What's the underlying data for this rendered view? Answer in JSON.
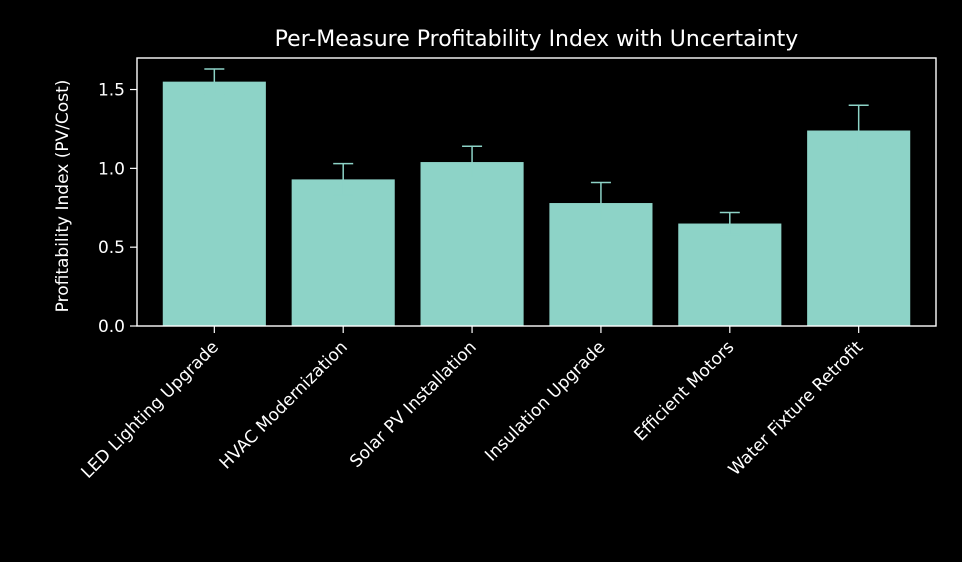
{
  "chart_data": {
    "type": "bar",
    "title": "Per-Measure Profitability Index with Uncertainty",
    "xlabel": "",
    "ylabel": "Profitability Index (PV/Cost)",
    "categories": [
      "LED Lighting Upgrade",
      "HVAC Modernization",
      "Solar PV Installation",
      "Insulation Upgrade",
      "Efficient Motors",
      "Water Fixture Retrofit"
    ],
    "values": [
      1.55,
      0.93,
      1.04,
      0.78,
      0.65,
      1.24
    ],
    "errors": [
      0.08,
      0.1,
      0.1,
      0.13,
      0.07,
      0.16
    ],
    "ylim": [
      0,
      1.7
    ],
    "yticks": [
      0.0,
      0.5,
      1.0,
      1.5
    ],
    "ytick_labels": [
      "0.0",
      "0.5",
      "1.0",
      "1.5"
    ],
    "grid": false,
    "colors": {
      "background": "#000000",
      "bar": "#8dd3c7",
      "error_bar": "#8dd3c7",
      "axis": "#ffffff",
      "text": "#ffffff"
    }
  }
}
